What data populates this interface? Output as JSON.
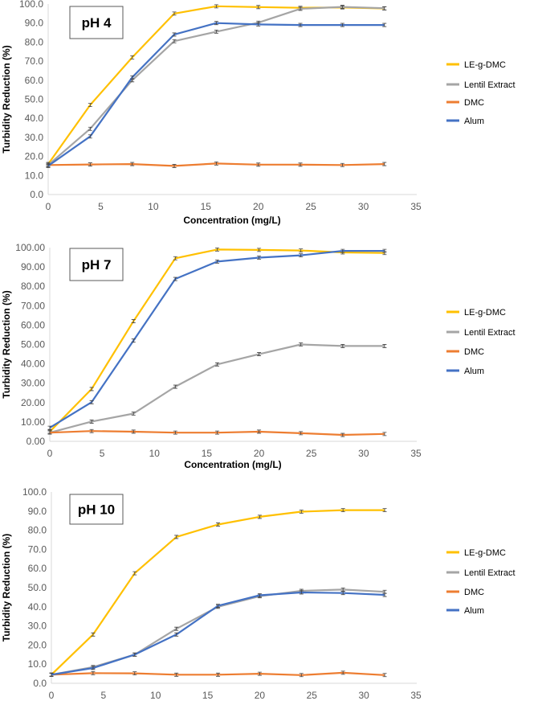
{
  "chart_data": [
    {
      "type": "line",
      "title": "pH 4",
      "xlabel": "Concentration (mg/L)",
      "ylabel": "Turbidity Reduction (%)",
      "xlim": [
        0,
        35
      ],
      "ylim": [
        0,
        100
      ],
      "xticks": [
        "0",
        "5",
        "10",
        "15",
        "20",
        "25",
        "30",
        "35"
      ],
      "yticks": [
        "0.0",
        "10.0",
        "20.0",
        "30.0",
        "40.0",
        "50.0",
        "60.0",
        "70.0",
        "80.0",
        "90.0",
        "100.0"
      ],
      "legend_position": "right",
      "x": [
        0,
        4,
        8,
        12,
        16,
        20,
        24,
        28,
        32
      ],
      "series": [
        {
          "name": "LE-g-DMC",
          "color": "#FFC000",
          "values": [
            16,
            47,
            72,
            95,
            98.8,
            98.4,
            98,
            98.2,
            97.7
          ]
        },
        {
          "name": "Lentil Extract",
          "color": "#A5A5A5",
          "values": [
            15.5,
            34.5,
            60,
            80.5,
            85.5,
            90.2,
            97.5,
            98.5,
            97.8
          ]
        },
        {
          "name": "DMC",
          "color": "#ED7D31",
          "values": [
            15.5,
            15.8,
            16,
            15,
            16.3,
            15.7,
            15.7,
            15.5,
            16
          ]
        },
        {
          "name": "Alum",
          "color": "#4472C4",
          "values": [
            15,
            30.5,
            61.5,
            84,
            90,
            89.3,
            89,
            89,
            89
          ]
        }
      ]
    },
    {
      "type": "line",
      "title": "pH 7",
      "xlabel": "Concentration (mg/L)",
      "ylabel": "Turbidity Reduction (%)",
      "xlim": [
        0,
        35
      ],
      "ylim": [
        0,
        100
      ],
      "xticks": [
        "0",
        "5",
        "10",
        "15",
        "20",
        "25",
        "30",
        "35"
      ],
      "yticks": [
        "0.00",
        "10.00",
        "20.00",
        "30.00",
        "40.00",
        "50.00",
        "60.00",
        "70.00",
        "80.00",
        "90.00",
        "100.00"
      ],
      "legend_position": "right",
      "x": [
        0,
        4,
        8,
        12,
        16,
        20,
        24,
        28,
        32
      ],
      "series": [
        {
          "name": "LE-g-DMC",
          "color": "#FFC000",
          "values": [
            5,
            27,
            62,
            94.5,
            99,
            98.8,
            98.5,
            97.5,
            97.2
          ]
        },
        {
          "name": "Lentil Extract",
          "color": "#A5A5A5",
          "values": [
            4.5,
            10.2,
            14.3,
            28.2,
            39.7,
            45,
            50,
            49.2,
            49.2
          ]
        },
        {
          "name": "DMC",
          "color": "#ED7D31",
          "values": [
            4.5,
            5.3,
            5,
            4.5,
            4.5,
            5,
            4.2,
            3.3,
            3.8
          ]
        },
        {
          "name": "Alum",
          "color": "#4472C4",
          "values": [
            7,
            20.2,
            52,
            83.8,
            92.8,
            94.8,
            96,
            98.3,
            98.3
          ]
        }
      ]
    },
    {
      "type": "line",
      "title": "pH 10",
      "ylabel": "Turbidity Reduction (%)",
      "xlim": [
        0,
        35
      ],
      "ylim": [
        0,
        100
      ],
      "xticks": [
        "0",
        "5",
        "10",
        "15",
        "20",
        "25",
        "30",
        "35"
      ],
      "yticks": [
        "0.0",
        "10.0",
        "20.0",
        "30.0",
        "40.0",
        "50.0",
        "60.0",
        "70.0",
        "80.0",
        "90.0",
        "100.0"
      ],
      "legend_position": "right",
      "x": [
        0,
        4,
        8,
        12,
        16,
        20,
        24,
        28,
        32
      ],
      "series": [
        {
          "name": "LE-g-DMC",
          "color": "#FFC000",
          "values": [
            4.5,
            25.5,
            57.5,
            76.5,
            83,
            87,
            89.7,
            90.5,
            90.5
          ]
        },
        {
          "name": "Lentil Extract",
          "color": "#A5A5A5",
          "values": [
            4.5,
            8.5,
            15,
            28.5,
            40,
            45.5,
            48.3,
            49,
            47.8
          ]
        },
        {
          "name": "DMC",
          "color": "#ED7D31",
          "values": [
            4.5,
            5.3,
            5.2,
            4.5,
            4.5,
            5,
            4.3,
            5.5,
            4.3
          ]
        },
        {
          "name": "Alum",
          "color": "#4472C4",
          "values": [
            4.5,
            8,
            15,
            25.5,
            40.5,
            46,
            47.5,
            47.2,
            46.2
          ]
        }
      ]
    }
  ]
}
